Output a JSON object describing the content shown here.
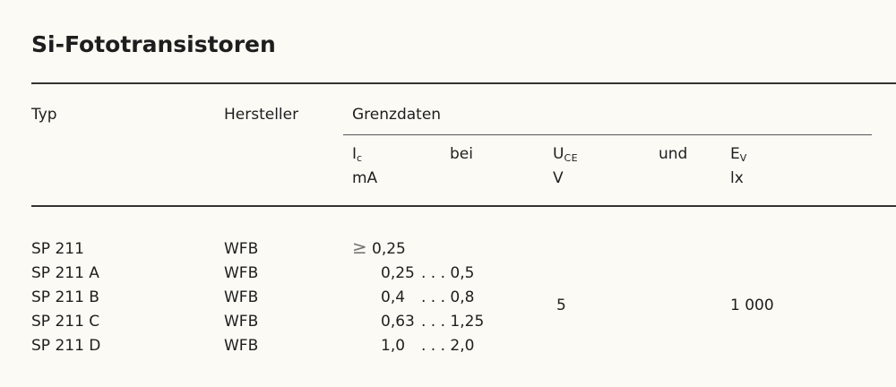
{
  "title": "Si-Fototransistoren",
  "header": {
    "typ": "Typ",
    "hersteller": "Hersteller",
    "grenzdaten": "Grenzdaten",
    "ic": "I",
    "ic_sub": "c",
    "ic_unit": "mA",
    "bei": "bei",
    "uce": "U",
    "uce_sub": "CE",
    "uce_unit": "V",
    "und": "und",
    "ev": "E",
    "ev_sub": "V",
    "ev_unit": "lx"
  },
  "rows": [
    {
      "typ": "SP 211",
      "hersteller": "WFB",
      "prefix": "≥",
      "ic_min": "0,25",
      "ic_max": ""
    },
    {
      "typ": "SP 211 A",
      "hersteller": "WFB",
      "prefix": "",
      "ic_min": "0,25",
      "ic_max": ". . . 0,5"
    },
    {
      "typ": "SP 211 B",
      "hersteller": "WFB",
      "prefix": "",
      "ic_min": "0,4",
      "ic_max": ". . . 0,8"
    },
    {
      "typ": "SP 211 C",
      "hersteller": "WFB",
      "prefix": "",
      "ic_min": "0,63",
      "ic_max": ". . . 1,25"
    },
    {
      "typ": "SP 211 D",
      "hersteller": "WFB",
      "prefix": "",
      "ic_min": "1,0",
      "ic_max": ". . . 2,0"
    }
  ],
  "common": {
    "uce": "5",
    "ev": "1 000"
  }
}
